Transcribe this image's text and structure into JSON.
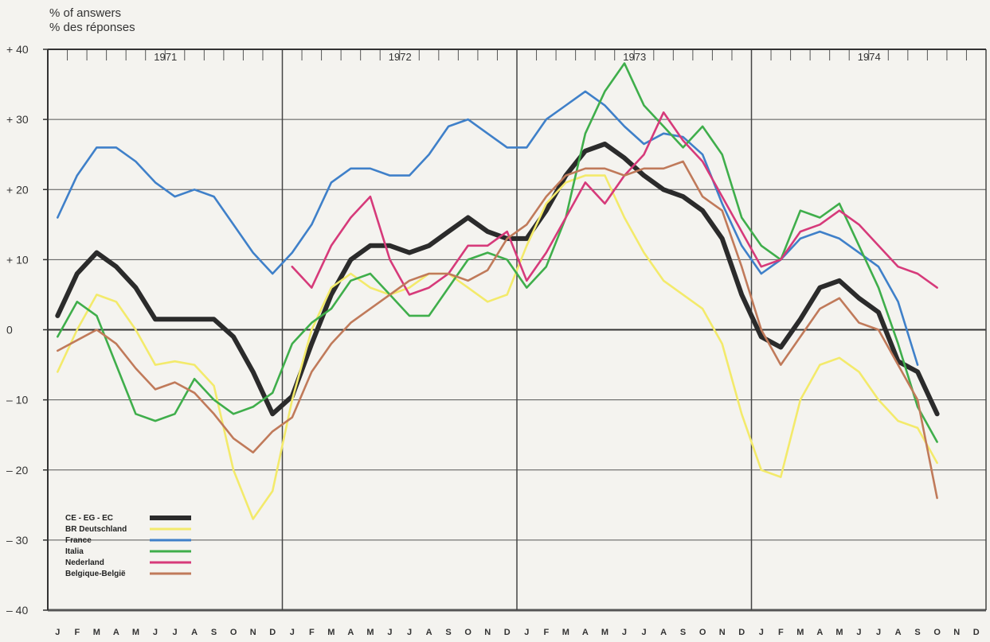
{
  "chart_data": {
    "type": "line",
    "ylabel": [
      "% of answers",
      "% des réponses"
    ],
    "ylim": [
      -40,
      40
    ],
    "y_ticks": [
      40,
      30,
      20,
      10,
      0,
      -10,
      -20,
      -30,
      -40
    ],
    "y_tick_labels": [
      "+ 40",
      "+ 30",
      "+ 20",
      "+ 10",
      "0",
      "– 10",
      "– 20",
      "– 30",
      "– 40"
    ],
    "years": [
      "1971",
      "1972",
      "1973",
      "1974"
    ],
    "month_labels": [
      "J",
      "F",
      "M",
      "A",
      "M",
      "J",
      "J",
      "A",
      "S",
      "O",
      "N",
      "D",
      "J",
      "F",
      "M",
      "A",
      "M",
      "J",
      "J",
      "A",
      "S",
      "O",
      "N",
      "D",
      "J",
      "F",
      "M",
      "A",
      "M",
      "J",
      "J",
      "A",
      "S",
      "O",
      "N",
      "D",
      "J",
      "F",
      "M",
      "A",
      "M",
      "J",
      "J",
      "A",
      "S",
      "O",
      "N",
      "D"
    ],
    "grid": true,
    "legend_position": "bottom-left",
    "colors": {
      "CE - EG - EC": "#2b2b2b",
      "BR Deutschland": "#f3ea6b",
      "France": "#3f80c9",
      "Italia": "#3fae4b",
      "Nederland": "#d63a7a",
      "Belgique-België": "#c07a5a"
    },
    "series": [
      {
        "name": "CE - EG - EC",
        "values": [
          2,
          8,
          11,
          9,
          6,
          1.5,
          1.5,
          1.5,
          1.5,
          -1,
          -6,
          -12,
          -9.5,
          -2,
          5,
          10,
          12,
          12,
          11,
          12,
          14,
          16,
          14,
          13,
          13,
          17,
          22,
          25.5,
          26.5,
          24.5,
          22,
          20,
          19,
          17,
          13,
          5,
          -1,
          -2.5,
          1.5,
          6,
          7,
          4.5,
          2.5,
          -4.5,
          -6,
          -12
        ]
      },
      {
        "name": "BR Deutschland",
        "values": [
          -6,
          0,
          5,
          4,
          0,
          -5,
          -4.5,
          -5,
          -8,
          -20,
          -27,
          -23,
          -10,
          0,
          6,
          8,
          6,
          5,
          6,
          8,
          8,
          6,
          4,
          5,
          12,
          18,
          21,
          22,
          22,
          16,
          11,
          7,
          5,
          3,
          -2,
          -12,
          -20,
          -21,
          -10,
          -5,
          -4,
          -6,
          -10,
          -13,
          -14,
          -19
        ]
      },
      {
        "name": "France",
        "values": [
          16,
          22,
          26,
          26,
          24,
          21,
          19,
          20,
          19,
          15,
          11,
          8,
          11,
          15,
          21,
          23,
          23,
          22,
          22,
          25,
          29,
          30,
          28,
          26,
          26,
          30,
          32,
          34,
          32,
          29,
          26.5,
          28,
          27.5,
          25,
          18,
          12,
          8,
          10,
          13,
          14,
          13,
          11,
          9,
          4,
          -5
        ]
      },
      {
        "name": "Italia",
        "values": [
          -1,
          4,
          2,
          -5,
          -12,
          -13,
          -12,
          -7,
          -10,
          -12,
          -11,
          -9,
          -2,
          1,
          3,
          7,
          8,
          5,
          2,
          2,
          6,
          10,
          11,
          10,
          6,
          9,
          16,
          28,
          34,
          38,
          32,
          29,
          26,
          29,
          25,
          16,
          12,
          10,
          17,
          16,
          18,
          12,
          6,
          -2,
          -11,
          -16
        ]
      },
      {
        "name": "Nederland",
        "values": [
          null,
          null,
          null,
          null,
          null,
          null,
          null,
          null,
          null,
          null,
          null,
          null,
          9,
          6,
          12,
          16,
          19,
          10,
          5,
          6,
          8,
          12,
          12,
          14,
          7,
          11,
          16,
          21,
          18,
          22,
          25,
          31,
          27,
          24,
          19,
          14,
          9,
          10,
          14,
          15,
          17,
          15,
          12,
          9,
          8,
          6
        ]
      },
      {
        "name": "Belgique-België",
        "values": [
          -3,
          -1.5,
          0,
          -2,
          -5.5,
          -8.5,
          -7.5,
          -9,
          -12,
          -15.5,
          -17.5,
          -14.5,
          -12.5,
          -6,
          -2,
          1,
          3,
          5,
          7,
          8,
          8,
          7,
          8.5,
          13,
          15,
          19,
          22,
          23,
          23,
          22,
          23,
          23,
          24,
          19,
          17,
          9,
          0,
          -5,
          -1,
          3,
          4.5,
          1,
          0,
          -5,
          -10,
          -24
        ]
      }
    ]
  }
}
